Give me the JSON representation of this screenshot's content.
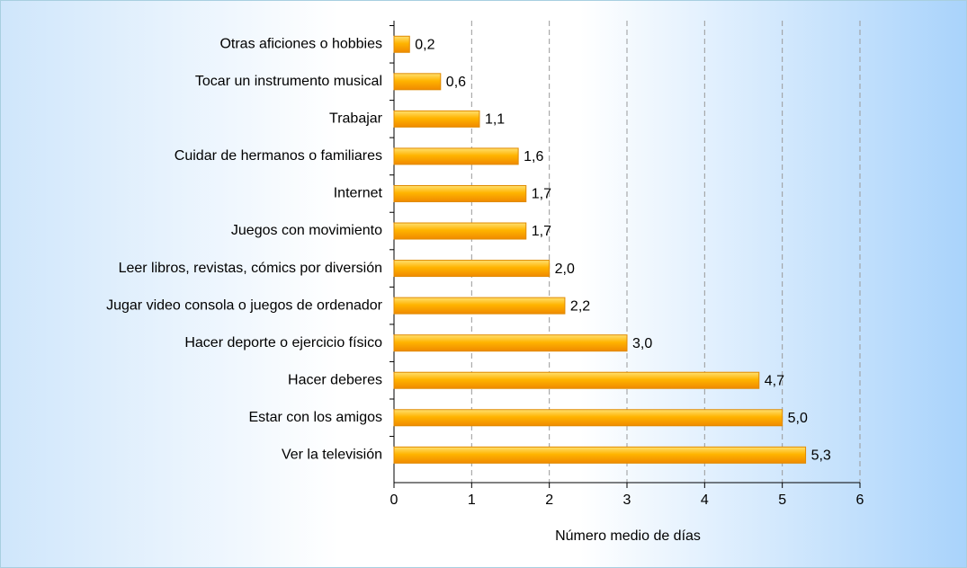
{
  "chart_data": {
    "type": "bar",
    "orientation": "horizontal",
    "categories": [
      "Otras aficiones o hobbies",
      "Tocar un instrumento musical",
      "Trabajar",
      "Cuidar de hermanos o familiares",
      "Internet",
      "Juegos con movimiento",
      "Leer libros, revistas, cómics por diversión",
      "Jugar video consola o juegos de ordenador",
      "Hacer deporte o ejercicio físico",
      "Hacer deberes",
      "Estar con los amigos",
      "Ver la televisión"
    ],
    "values": [
      0.2,
      0.6,
      1.1,
      1.6,
      1.7,
      1.7,
      2.0,
      2.2,
      3.0,
      4.7,
      5.0,
      5.3
    ],
    "value_labels": [
      "0,2",
      "0,6",
      "1,1",
      "1,6",
      "1,7",
      "1,7",
      "2,0",
      "2,2",
      "3,0",
      "4,7",
      "5,0",
      "5,3"
    ],
    "color": "#ffb400",
    "xlabel": "Número medio de días",
    "xlim": [
      0,
      6
    ],
    "xticks": [
      0,
      1,
      2,
      3,
      4,
      5,
      6
    ],
    "grid": true
  }
}
